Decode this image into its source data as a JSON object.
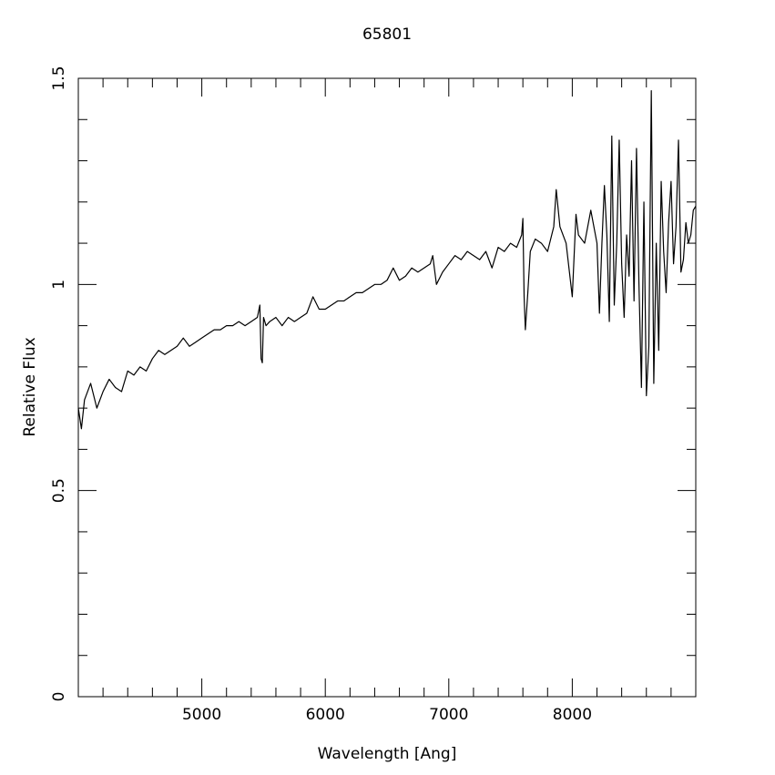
{
  "chart_data": {
    "type": "line",
    "title": "65801",
    "xlabel": "Wavelength [Ang]",
    "ylabel": "Relative Flux",
    "xlim": [
      4000,
      9000
    ],
    "ylim": [
      0,
      1.5
    ],
    "xticks": [
      5000,
      6000,
      7000,
      8000
    ],
    "yticks": [
      0,
      0.5,
      1,
      1.5
    ],
    "xminorticks": [
      4200,
      4400,
      4600,
      4800,
      5200,
      5400,
      5600,
      5800,
      6200,
      6400,
      6600,
      6800,
      7200,
      7400,
      7600,
      7800,
      8200,
      8400,
      8600,
      8800
    ],
    "yminorticks": [
      0.1,
      0.2,
      0.3,
      0.4,
      0.6,
      0.7,
      0.8,
      0.9,
      1.1,
      1.2,
      1.3,
      1.4
    ],
    "grid": false,
    "series": [
      {
        "color": "#000000",
        "x": [
          4000,
          4025,
          4050,
          4100,
          4150,
          4200,
          4250,
          4300,
          4350,
          4400,
          4450,
          4500,
          4550,
          4600,
          4650,
          4700,
          4750,
          4800,
          4850,
          4900,
          4950,
          5000,
          5050,
          5100,
          5150,
          5200,
          5250,
          5300,
          5350,
          5400,
          5450,
          5470,
          5480,
          5490,
          5500,
          5520,
          5550,
          5600,
          5650,
          5700,
          5750,
          5800,
          5850,
          5900,
          5950,
          6000,
          6050,
          6100,
          6150,
          6200,
          6250,
          6300,
          6350,
          6400,
          6450,
          6500,
          6550,
          6600,
          6650,
          6700,
          6750,
          6800,
          6850,
          6870,
          6900,
          6950,
          7000,
          7050,
          7100,
          7150,
          7200,
          7250,
          7300,
          7350,
          7400,
          7450,
          7500,
          7550,
          7590,
          7600,
          7610,
          7620,
          7640,
          7660,
          7700,
          7750,
          7800,
          7850,
          7870,
          7900,
          7950,
          8000,
          8030,
          8050,
          8100,
          8150,
          8200,
          8220,
          8240,
          8260,
          8280,
          8300,
          8320,
          8340,
          8360,
          8380,
          8400,
          8420,
          8440,
          8460,
          8480,
          8500,
          8520,
          8540,
          8560,
          8580,
          8600,
          8620,
          8640,
          8660,
          8680,
          8700,
          8720,
          8740,
          8760,
          8780,
          8800,
          8820,
          8840,
          8860,
          8880,
          8900,
          8920,
          8940,
          8960,
          8980,
          9000
        ],
        "values": [
          0.7,
          0.65,
          0.72,
          0.76,
          0.7,
          0.74,
          0.77,
          0.75,
          0.74,
          0.79,
          0.78,
          0.8,
          0.79,
          0.82,
          0.84,
          0.83,
          0.84,
          0.85,
          0.87,
          0.85,
          0.86,
          0.87,
          0.88,
          0.89,
          0.89,
          0.9,
          0.9,
          0.91,
          0.9,
          0.91,
          0.92,
          0.95,
          0.82,
          0.81,
          0.92,
          0.9,
          0.91,
          0.92,
          0.9,
          0.92,
          0.91,
          0.92,
          0.93,
          0.97,
          0.94,
          0.94,
          0.95,
          0.96,
          0.96,
          0.97,
          0.98,
          0.98,
          0.99,
          1.0,
          1.0,
          1.01,
          1.04,
          1.01,
          1.02,
          1.04,
          1.03,
          1.04,
          1.05,
          1.07,
          1.0,
          1.03,
          1.05,
          1.07,
          1.06,
          1.08,
          1.07,
          1.06,
          1.08,
          1.04,
          1.09,
          1.08,
          1.1,
          1.09,
          1.12,
          1.16,
          0.97,
          0.89,
          0.98,
          1.08,
          1.11,
          1.1,
          1.08,
          1.14,
          1.23,
          1.14,
          1.1,
          0.97,
          1.17,
          1.12,
          1.1,
          1.18,
          1.1,
          0.93,
          1.1,
          1.24,
          1.12,
          0.91,
          1.36,
          0.95,
          1.1,
          1.35,
          1.05,
          0.92,
          1.12,
          1.02,
          1.3,
          0.96,
          1.33,
          1.0,
          0.75,
          1.2,
          0.73,
          0.85,
          1.47,
          0.76,
          1.1,
          0.84,
          1.25,
          1.08,
          0.98,
          1.15,
          1.25,
          1.05,
          1.14,
          1.35,
          1.03,
          1.06,
          1.15,
          1.1,
          1.12,
          1.18,
          1.19
        ]
      }
    ]
  }
}
